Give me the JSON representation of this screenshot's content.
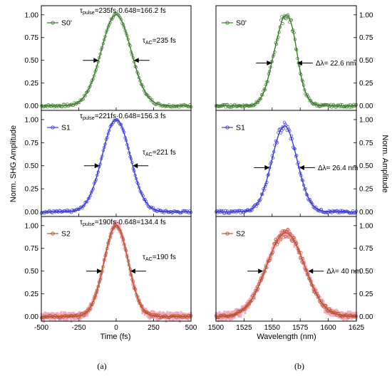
{
  "colors": {
    "S0'": "#3a7d2a",
    "S1": "#3b3bd9",
    "S2": "#b5552a",
    "pink": "#f29bb5"
  },
  "figure": {
    "left_caption": "(a)",
    "right_caption": "(b)",
    "left_ylabel": "Norm. SHG Amplitude",
    "right_ylabel": "Norm. Amplitude",
    "left_xlabel": "Time (fs)",
    "right_xlabel": "Wavelength (nm)"
  },
  "chart_data": [
    {
      "id": "a-S0",
      "type": "line",
      "panel": "a",
      "row": 0,
      "legend": "S0'",
      "xlabel": "",
      "ylabel": "",
      "xlim": [
        -500,
        500
      ],
      "ylim": [
        -0.05,
        1.1
      ],
      "yticks": [
        0.0,
        0.25,
        0.5,
        0.75,
        1.0
      ],
      "ytick_labels": [
        "0.00",
        "0.25",
        "0.50",
        "0.75",
        "1.00"
      ],
      "xticks": [
        -500,
        -250,
        0,
        250,
        500
      ],
      "show_xtick_labels": false,
      "pulse": {
        "center": 0,
        "fwhm": 235,
        "peak": 1.0
      },
      "fwhm_marker_y": 0.5,
      "annotations": [
        {
          "text": "τ",
          "sub": "pulse",
          "rest": "=235fs·0.648=166.2 fs"
        },
        {
          "text": "τ",
          "sub": "AC",
          "rest": "=235 fs"
        }
      ],
      "color": "#3a7d2a"
    },
    {
      "id": "a-S1",
      "type": "line",
      "panel": "a",
      "row": 1,
      "legend": "S1",
      "xlim": [
        -500,
        500
      ],
      "ylim": [
        -0.05,
        1.1
      ],
      "yticks": [
        0.0,
        0.25,
        0.5,
        0.75,
        1.0
      ],
      "ytick_labels": [
        "0.00",
        "0.25",
        "0.50",
        "0.75",
        "1.00"
      ],
      "xticks": [
        -500,
        -250,
        0,
        250,
        500
      ],
      "show_xtick_labels": false,
      "pulse": {
        "center": 0,
        "fwhm": 221,
        "peak": 1.0
      },
      "fwhm_marker_y": 0.5,
      "annotations": [
        {
          "text": "τ",
          "sub": "pulse",
          "rest": "=221fs·0.648=156.3 fs"
        },
        {
          "text": "τ",
          "sub": "AC",
          "rest": "=221 fs"
        }
      ],
      "color": "#3b3bd9"
    },
    {
      "id": "a-S2",
      "type": "line",
      "panel": "a",
      "row": 2,
      "legend": "S2",
      "xlim": [
        -500,
        500
      ],
      "ylim": [
        -0.05,
        1.1
      ],
      "yticks": [
        0.0,
        0.25,
        0.5,
        0.75,
        1.0
      ],
      "ytick_labels": [
        "0.00",
        "0.25",
        "0.50",
        "0.75",
        "1.00"
      ],
      "xticks": [
        -500,
        -250,
        0,
        250,
        500
      ],
      "xtick_labels": [
        "-500",
        "-250",
        "0",
        "250",
        "500"
      ],
      "show_xtick_labels": true,
      "pulse": {
        "center": 0,
        "fwhm": 190,
        "peak": 1.0
      },
      "fwhm_marker_y": 0.5,
      "annotations": [
        {
          "text": "τ",
          "sub": "pulse",
          "rest": "=190fs·0.648=134.4 fs"
        },
        {
          "text": "τ",
          "sub": "AC",
          "rest": "=190 fs"
        }
      ],
      "color": "#b5552a"
    },
    {
      "id": "b-S0",
      "type": "line",
      "panel": "b",
      "row": 0,
      "legend": "S0'",
      "xlim": [
        1500,
        1625
      ],
      "ylim": [
        -0.05,
        1.1
      ],
      "yticks": [
        0.0,
        0.25,
        0.5,
        0.75,
        1.0
      ],
      "ytick_labels": [
        "0.00",
        "0.25",
        "0.50",
        "0.75",
        "1.00"
      ],
      "xticks": [
        1500,
        1525,
        1550,
        1575,
        1600,
        1625
      ],
      "show_xtick_labels": false,
      "spectrum": {
        "center": 1561,
        "fwhm": 22.6,
        "peak": 0.97
      },
      "fwhm_marker_y": 0.47,
      "annotations": [
        {
          "text": "Δλ",
          "rest": "= 22.6 nm"
        }
      ],
      "color": "#3a7d2a"
    },
    {
      "id": "b-S1",
      "type": "line",
      "panel": "b",
      "row": 1,
      "legend": "S1",
      "xlim": [
        1500,
        1625
      ],
      "ylim": [
        -0.05,
        1.1
      ],
      "yticks": [
        0.0,
        0.25,
        0.5,
        0.75,
        1.0
      ],
      "ytick_labels": [
        "0.00",
        "0.25",
        "0.50",
        "0.75",
        "1.00"
      ],
      "xticks": [
        1500,
        1525,
        1550,
        1575,
        1600,
        1625
      ],
      "show_xtick_labels": false,
      "spectrum": {
        "center": 1561,
        "fwhm": 26.4,
        "peak": 0.93
      },
      "fwhm_marker_y": 0.48,
      "annotations": [
        {
          "text": "Δλ",
          "rest": "= 26.4 nm"
        }
      ],
      "color": "#3b3bd9"
    },
    {
      "id": "b-S2",
      "type": "line",
      "panel": "b",
      "row": 2,
      "legend": "S2",
      "xlim": [
        1500,
        1625
      ],
      "ylim": [
        -0.05,
        1.1
      ],
      "yticks": [
        0.0,
        0.25,
        0.5,
        0.75,
        1.0
      ],
      "ytick_labels": [
        "0.00",
        "0.25",
        "0.50",
        "0.75",
        "1.00"
      ],
      "xticks": [
        1500,
        1525,
        1550,
        1575,
        1600,
        1625
      ],
      "xtick_labels": [
        "1500",
        "1525",
        "1550",
        "1575",
        "1600",
        "1625"
      ],
      "show_xtick_labels": true,
      "spectrum": {
        "center": 1562,
        "fwhm": 40,
        "peak": 0.92
      },
      "fwhm_marker_y": 0.5,
      "annotations": [
        {
          "text": "Δλ",
          "rest": "= 40 nm"
        }
      ],
      "color": "#b5552a"
    }
  ]
}
